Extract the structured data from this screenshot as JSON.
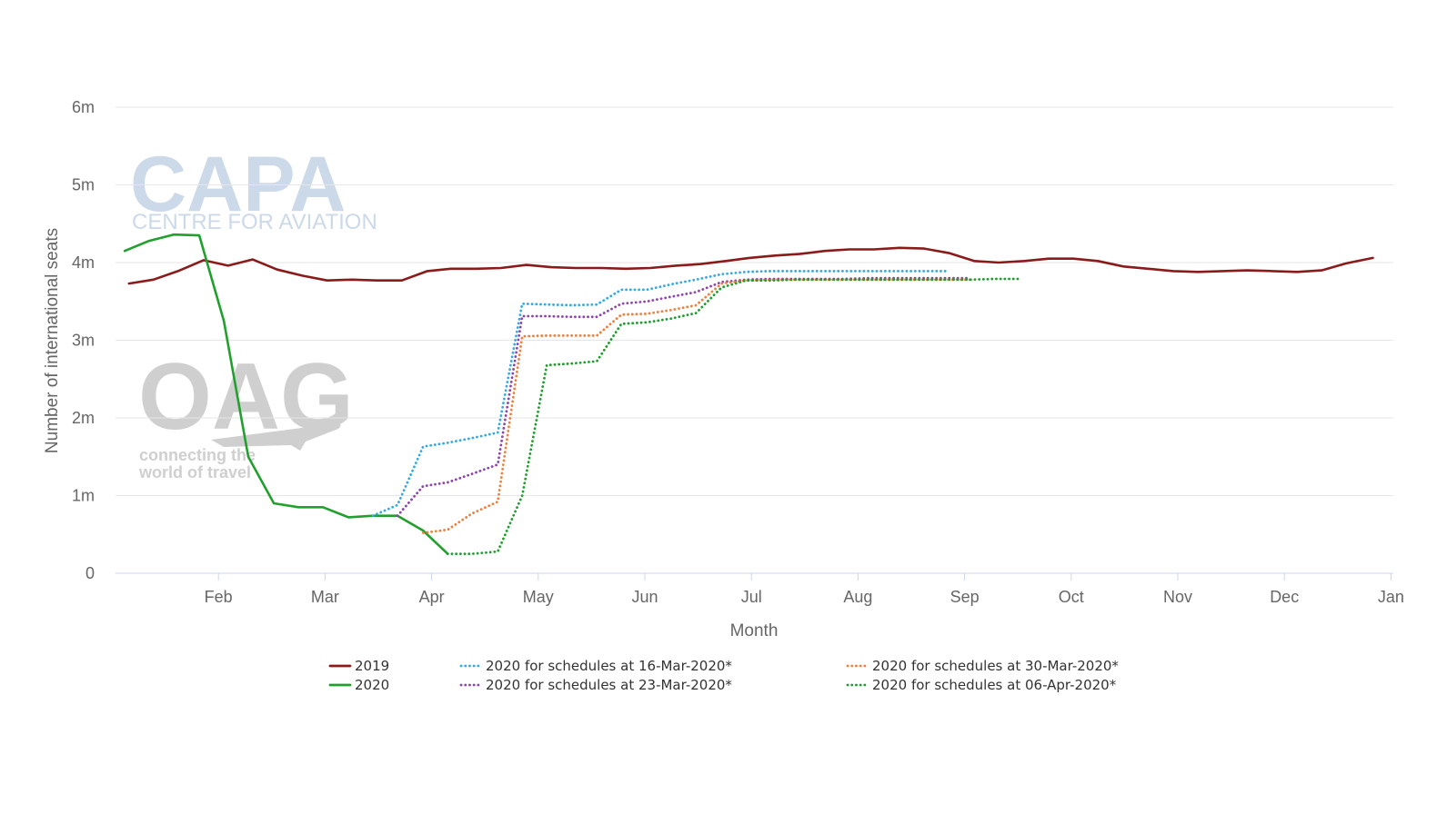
{
  "watermarks": {
    "capa_logo": "CAPA",
    "capa_tagline": "CENTRE FOR AVIATION",
    "oag_logo": "OAG",
    "oag_tagline_1": "connecting the",
    "oag_tagline_2": "world of travel"
  },
  "chart_data": {
    "type": "line",
    "title": "",
    "xlabel": "Month",
    "ylabel": "Number of international seats",
    "x_unit": "month index (Jan 1 = 0, Jan 1 next year = 12)",
    "xlim": [
      0,
      12
    ],
    "ylim": [
      0,
      6000000
    ],
    "y_ticks": [
      0,
      1000000,
      2000000,
      3000000,
      4000000,
      5000000,
      6000000
    ],
    "y_tick_labels": [
      "0",
      "1m",
      "2m",
      "3m",
      "4m",
      "5m",
      "6m"
    ],
    "x_ticks": [
      1,
      2,
      3,
      4,
      5,
      6,
      7,
      8,
      9,
      10,
      11,
      12
    ],
    "x_tick_labels": [
      "Feb",
      "Mar",
      "Apr",
      "May",
      "Jun",
      "Jul",
      "Aug",
      "Sep",
      "Oct",
      "Nov",
      "Dec",
      "Jan"
    ],
    "grid": "horizontal",
    "legend_position": "bottom",
    "series": [
      {
        "name": "2019",
        "color": "#8b1a1a",
        "dash": "solid",
        "x": [
          0.16,
          0.39,
          0.62,
          0.86,
          1.09,
          1.32,
          1.55,
          1.79,
          2.02,
          2.25,
          2.49,
          2.72,
          2.96,
          3.18,
          3.42,
          3.65,
          3.89,
          4.12,
          4.35,
          4.59,
          4.82,
          5.05,
          5.29,
          5.52,
          5.76,
          5.98,
          6.22,
          6.45,
          6.69,
          6.92,
          7.15,
          7.39,
          7.62,
          7.86,
          8.09,
          8.32,
          8.56,
          8.79,
          9.02,
          9.25,
          9.49,
          9.72,
          9.96,
          10.19,
          10.42,
          10.65,
          10.89,
          11.12,
          11.35,
          11.58,
          11.83
        ],
        "y": [
          3730000,
          3780000,
          3890000,
          4030000,
          3960000,
          4040000,
          3910000,
          3830000,
          3770000,
          3780000,
          3770000,
          3770000,
          3890000,
          3920000,
          3920000,
          3930000,
          3970000,
          3940000,
          3930000,
          3930000,
          3920000,
          3930000,
          3960000,
          3980000,
          4020000,
          4060000,
          4090000,
          4110000,
          4150000,
          4170000,
          4170000,
          4190000,
          4180000,
          4120000,
          4020000,
          4000000,
          4020000,
          4050000,
          4050000,
          4020000,
          3950000,
          3920000,
          3890000,
          3880000,
          3890000,
          3900000,
          3890000,
          3880000,
          3900000,
          3990000,
          4060000
        ]
      },
      {
        "name": "2020",
        "color": "#22a02e",
        "dash": "solid",
        "x": [
          0.12,
          0.35,
          0.58,
          0.82,
          1.05,
          1.28,
          1.52,
          1.75,
          1.98,
          2.22,
          2.45,
          2.68,
          2.92,
          3.15
        ],
        "y": [
          4150000,
          4280000,
          4360000,
          4350000,
          3250000,
          1500000,
          900000,
          850000,
          850000,
          720000,
          740000,
          740000,
          550000,
          250000
        ]
      },
      {
        "name": "2020 for schedules at 16-Mar-2020*",
        "color": "#36a9e1",
        "dash": "dotted",
        "x": [
          2.45,
          2.68,
          2.92,
          3.15,
          3.38,
          3.62,
          3.85,
          4.08,
          4.32,
          4.55,
          4.78,
          5.02,
          5.25,
          5.48,
          5.72,
          5.95,
          6.18,
          6.42,
          6.65,
          6.88,
          7.12,
          7.35,
          7.58,
          7.82
        ],
        "y": [
          740000,
          880000,
          1630000,
          1680000,
          1740000,
          1810000,
          3470000,
          3460000,
          3450000,
          3460000,
          3650000,
          3650000,
          3720000,
          3780000,
          3850000,
          3880000,
          3890000,
          3890000,
          3890000,
          3890000,
          3890000,
          3890000,
          3890000,
          3890000
        ]
      },
      {
        "name": "2020 for schedules at 23-Mar-2020*",
        "color": "#8e44ad",
        "dash": "dotted",
        "x": [
          2.68,
          2.92,
          3.15,
          3.38,
          3.62,
          3.85,
          4.08,
          4.32,
          4.55,
          4.78,
          5.02,
          5.25,
          5.48,
          5.72,
          5.95,
          6.18,
          6.42,
          6.65,
          6.88,
          7.12,
          7.35,
          7.58,
          7.82,
          8.05
        ],
        "y": [
          740000,
          1120000,
          1170000,
          1280000,
          1400000,
          3310000,
          3310000,
          3300000,
          3300000,
          3470000,
          3500000,
          3560000,
          3620000,
          3750000,
          3780000,
          3790000,
          3790000,
          3790000,
          3790000,
          3800000,
          3800000,
          3800000,
          3800000,
          3800000
        ]
      },
      {
        "name": "2020 for schedules at 30-Mar-2020*",
        "color": "#f07f3c",
        "dash": "dotted",
        "x": [
          2.92,
          3.15,
          3.38,
          3.62,
          3.85,
          4.08,
          4.32,
          4.55,
          4.78,
          5.02,
          5.25,
          5.48,
          5.72,
          5.95,
          6.18,
          6.42,
          6.65,
          6.88,
          7.12,
          7.35,
          7.58,
          7.82,
          8.05
        ],
        "y": [
          520000,
          560000,
          770000,
          920000,
          3050000,
          3060000,
          3060000,
          3060000,
          3330000,
          3340000,
          3390000,
          3450000,
          3730000,
          3770000,
          3780000,
          3780000,
          3780000,
          3780000,
          3780000,
          3780000,
          3780000,
          3780000,
          3780000
        ]
      },
      {
        "name": "2020 for schedules at 06-Apr-2020*",
        "color": "#1e9e2e",
        "dash": "dotted",
        "x": [
          3.15,
          3.38,
          3.62,
          3.85,
          4.08,
          4.32,
          4.55,
          4.78,
          5.02,
          5.25,
          5.48,
          5.72,
          5.95,
          6.18,
          6.42,
          6.65,
          6.88,
          7.12,
          7.35,
          7.58,
          7.82,
          8.05,
          8.28,
          8.52
        ],
        "y": [
          250000,
          250000,
          280000,
          1000000,
          2680000,
          2700000,
          2730000,
          3210000,
          3230000,
          3280000,
          3350000,
          3680000,
          3770000,
          3770000,
          3780000,
          3780000,
          3780000,
          3780000,
          3780000,
          3780000,
          3780000,
          3780000,
          3790000,
          3790000
        ]
      }
    ]
  }
}
